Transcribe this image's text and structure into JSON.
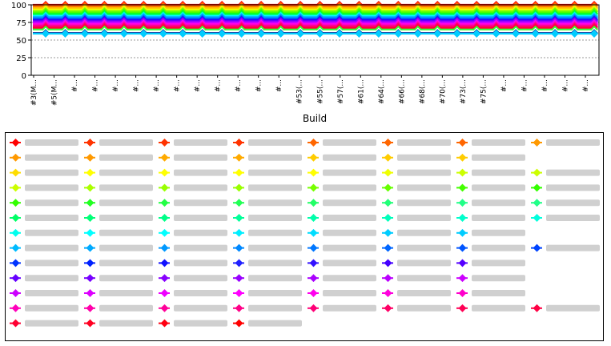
{
  "chart_data": {
    "type": "line",
    "title": "",
    "xlabel": "Build",
    "ylabel": "",
    "ylim": [
      0,
      100
    ],
    "yticks": [
      0,
      25,
      50,
      75,
      100
    ],
    "grid": true,
    "legend_position": "bottom",
    "x_tick_labels": [
      "#3(M...",
      "#5(M...",
      "#...",
      "#...",
      "#...",
      "#...",
      "#...",
      "#...",
      "#...",
      "#...",
      "#...",
      "#...",
      "#...",
      "#53(...",
      "#55(...",
      "#57(...",
      "#61(...",
      "#64(...",
      "#66(...",
      "#68(...",
      "#70(...",
      "#73(...",
      "#75(...",
      "#...",
      "#...",
      "#...",
      "#...",
      "#..."
    ],
    "point_count": 29,
    "series_levels": [
      {
        "color": "#ff0000",
        "value": 100
      },
      {
        "color": "#ff3300",
        "value": 99
      },
      {
        "color": "#ff6600",
        "value": 98
      },
      {
        "color": "#ff9900",
        "value": 96
      },
      {
        "color": "#ffcc00",
        "value": 95
      },
      {
        "color": "#ffff00",
        "value": 93
      },
      {
        "color": "#ccff00",
        "value": 92
      },
      {
        "color": "#99ff00",
        "value": 91
      },
      {
        "color": "#66ff00",
        "value": 90
      },
      {
        "color": "#33ff00",
        "value": 88
      },
      {
        "color": "#00ff33",
        "value": 87
      },
      {
        "color": "#00ff99",
        "value": 85
      },
      {
        "color": "#00ffff",
        "value": 84
      },
      {
        "color": "#00ccff",
        "value": 83
      },
      {
        "color": "#0099ff",
        "value": 82
      },
      {
        "color": "#0066ff",
        "value": 80
      },
      {
        "color": "#0033ff",
        "value": 79
      },
      {
        "color": "#3300ff",
        "value": 78
      },
      {
        "color": "#6600ff",
        "value": 77
      },
      {
        "color": "#9900ff",
        "value": 76
      },
      {
        "color": "#cc00ff",
        "value": 74
      },
      {
        "color": "#ff00ff",
        "value": 73
      },
      {
        "color": "#ff00cc",
        "value": 72
      },
      {
        "color": "#ff0099",
        "value": 70
      },
      {
        "color": "#ff0066",
        "value": 69
      },
      {
        "color": "#ff0033",
        "value": 67
      },
      {
        "color": "#33ff33",
        "value": 65
      },
      {
        "color": "#ffffff",
        "value": 62
      },
      {
        "color": "#003399",
        "value": 60
      },
      {
        "color": "#00ccff",
        "value": 59
      }
    ],
    "legend_rows": [
      [
        "#ff0000",
        "#ff3300",
        "#ff3300",
        "#ff3300",
        "#ff6600",
        "#ff6600",
        "#ff6600",
        "#ff9900"
      ],
      [
        "#ff9900",
        "#ff9900",
        "#ffaa00",
        "#ffaa00",
        "#ffcc00",
        "#ffcc00",
        "#ffcc00"
      ],
      [
        "#ffdd00",
        "#ffff00",
        "#ffff00",
        "#ffff00",
        "#ffff00",
        "#eeff00",
        "#ccff00",
        "#ccff00"
      ],
      [
        "#ccff00",
        "#aaff00",
        "#99ff00",
        "#99ff00",
        "#77ff00",
        "#66ff00",
        "#44ff00",
        "#33ff00"
      ],
      [
        "#33ff00",
        "#22ff22",
        "#22ff44",
        "#22ff55",
        "#22ff66",
        "#22ff77",
        "#22ff88",
        "#22ff88"
      ],
      [
        "#00ff66",
        "#00ff77",
        "#00ff88",
        "#00ff99",
        "#00ffaa",
        "#00ffbb",
        "#00ffcc",
        "#00ffdd"
      ],
      [
        "#00ffee",
        "#00ffff",
        "#00ffff",
        "#00eeff",
        "#00ddff",
        "#00ccff",
        "#00ccff"
      ],
      [
        "#00bbff",
        "#00aaff",
        "#0099ff",
        "#0088ff",
        "#0077ff",
        "#0066ff",
        "#0055ff",
        "#0044ff"
      ],
      [
        "#0033ff",
        "#0022ff",
        "#1111ff",
        "#2222ff",
        "#3311ff",
        "#4400ff",
        "#5500ff"
      ],
      [
        "#6600ff",
        "#7700ff",
        "#8800ff",
        "#9900ff",
        "#aa00ff",
        "#bb00ff",
        "#cc00ff"
      ],
      [
        "#cc00ff",
        "#dd00ff",
        "#ee00ff",
        "#ff00ff",
        "#ff00ee",
        "#ff00dd",
        "#ff00cc"
      ],
      [
        "#ff00bb",
        "#ff00aa",
        "#ff0099",
        "#ff0088",
        "#ff0077",
        "#ff0066",
        "#ff0055",
        "#ff0044"
      ],
      [
        "#ff0033",
        "#ff0022",
        "#ff0011",
        "#ff0000"
      ]
    ]
  }
}
